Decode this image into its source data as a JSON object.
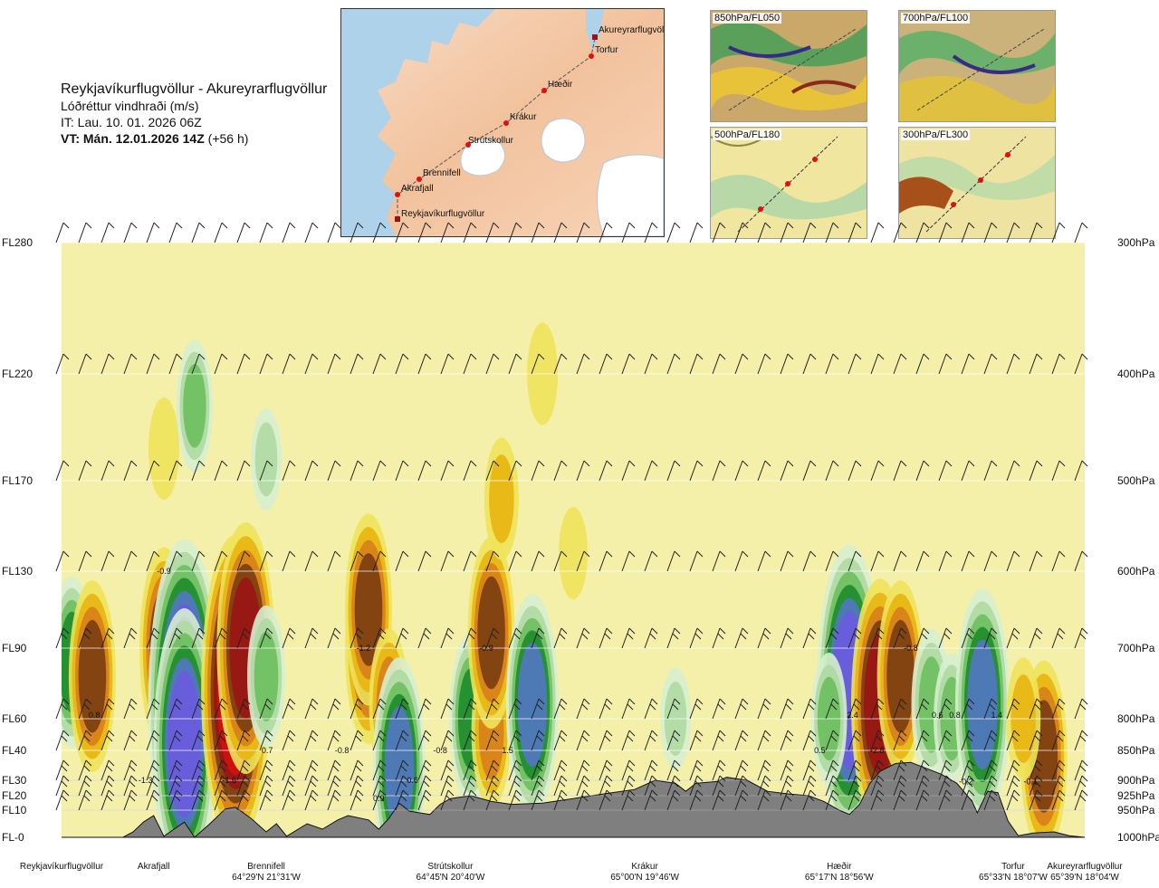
{
  "header": {
    "route": "Reykjavíkurflugvöllur - Akureyrarflugvöllur",
    "parameter": "Lóðréttur vindhraði (m/s)",
    "issue_time": "IT: Lau. 10. 01. 2026 06Z",
    "valid_prefix": "VT: Mán. 12.01.2026 14Z",
    "valid_suffix": " (+56 h)"
  },
  "route_map": {
    "points": [
      {
        "name": "Akureyrarflugvöllur"
      },
      {
        "name": "Torfur"
      },
      {
        "name": "Hæðir"
      },
      {
        "name": "Krákur"
      },
      {
        "name": "Strútskollur"
      },
      {
        "name": "Brennifell"
      },
      {
        "name": "Akrafjall"
      },
      {
        "name": "Reykjavíkurflugvöllur"
      }
    ]
  },
  "mini_maps": [
    {
      "label": "850hPa/FL050"
    },
    {
      "label": "700hPa/FL100"
    },
    {
      "label": "500hPa/FL180"
    },
    {
      "label": "300hPa/FL300"
    }
  ],
  "chart_data": {
    "type": "heatmap",
    "title": "Lóðréttur vindhraði (m/s)",
    "y_axis_left": [
      {
        "label": "FL280",
        "hpa": 300
      },
      {
        "label": "FL220",
        "hpa": 400
      },
      {
        "label": "FL170",
        "hpa": 500
      },
      {
        "label": "FL130",
        "hpa": 600
      },
      {
        "label": "FL90",
        "hpa": 700
      },
      {
        "label": "FL60",
        "hpa": 800
      },
      {
        "label": "FL40",
        "hpa": 850
      },
      {
        "label": "FL30",
        "hpa": 900
      },
      {
        "label": "FL20",
        "hpa": 925
      },
      {
        "label": "FL10",
        "hpa": 950
      },
      {
        "label": "FL-0",
        "hpa": 1000
      }
    ],
    "y_axis_right": [
      "300hPa",
      "400hPa",
      "500hPa",
      "600hPa",
      "700hPa",
      "800hPa",
      "850hPa",
      "900hPa",
      "925hPa",
      "950hPa",
      "1000hPa"
    ],
    "x_range": [
      0,
      1
    ],
    "x_locations": [
      {
        "name": "Reykjavíkurflugvöllur",
        "coord": "",
        "x": 0.0
      },
      {
        "name": "Akrafjall",
        "coord": "",
        "x": 0.09
      },
      {
        "name": "Brennifell",
        "coord": "64°29'N 21°31'W",
        "x": 0.2
      },
      {
        "name": "Strútskollur",
        "coord": "64°45'N 20°40'W",
        "x": 0.38
      },
      {
        "name": "Krákur",
        "coord": "65°00'N 19°46'W",
        "x": 0.57
      },
      {
        "name": "Hæðir",
        "coord": "65°17'N 18°56'W",
        "x": 0.76
      },
      {
        "name": "Torfur",
        "coord": "65°33'N 18°07'W",
        "x": 0.93
      },
      {
        "name": "Akureyrarflugvöllur",
        "coord": "65°39'N 18°04'W",
        "x": 1.0
      }
    ],
    "colorscale": [
      {
        "value": -2.5,
        "color": "#2b0f8f"
      },
      {
        "value": -2.0,
        "color": "#6b5be0"
      },
      {
        "value": -1.5,
        "color": "#5277c4"
      },
      {
        "value": -1.0,
        "color": "#1e8c2a"
      },
      {
        "value": -0.6,
        "color": "#6cbf5e"
      },
      {
        "value": -0.3,
        "color": "#aed9a2"
      },
      {
        "value": -0.1,
        "color": "#d7eecf"
      },
      {
        "value": 0.0,
        "color": "#f5f0a9"
      },
      {
        "value": 0.2,
        "color": "#f0e35a"
      },
      {
        "value": 0.5,
        "color": "#e8b510"
      },
      {
        "value": 0.8,
        "color": "#d77f1a"
      },
      {
        "value": 1.2,
        "color": "#7a3d12"
      },
      {
        "value": 1.8,
        "color": "#9a1414"
      },
      {
        "value": 2.4,
        "color": "#d61010"
      }
    ],
    "field_features": [
      {
        "x": 0.01,
        "hpa": 720,
        "value": -1.0
      },
      {
        "x": 0.03,
        "hpa": 740,
        "value": 1.2
      },
      {
        "x": 0.1,
        "hpa": 700,
        "value": 1.3
      },
      {
        "x": 0.12,
        "hpa": 780,
        "value": -2.6
      },
      {
        "x": 0.12,
        "hpa": 840,
        "value": -2.0
      },
      {
        "x": 0.17,
        "hpa": 760,
        "value": 2.4
      },
      {
        "x": 0.18,
        "hpa": 700,
        "value": 1.8
      },
      {
        "x": 0.2,
        "hpa": 740,
        "value": -0.7
      },
      {
        "x": 0.3,
        "hpa": 700,
        "value": 1.2
      },
      {
        "x": 0.3,
        "hpa": 650,
        "value": 1.2
      },
      {
        "x": 0.32,
        "hpa": 780,
        "value": 0.8
      },
      {
        "x": 0.33,
        "hpa": 880,
        "value": -1.5
      },
      {
        "x": 0.4,
        "hpa": 800,
        "value": -1.0
      },
      {
        "x": 0.42,
        "hpa": 820,
        "value": 0.8
      },
      {
        "x": 0.42,
        "hpa": 680,
        "value": 1.2
      },
      {
        "x": 0.43,
        "hpa": 520,
        "value": 0.5
      },
      {
        "x": 0.46,
        "hpa": 780,
        "value": -1.5
      },
      {
        "x": 0.5,
        "hpa": 580,
        "value": 0.2
      },
      {
        "x": 0.47,
        "hpa": 400,
        "value": 0.3
      },
      {
        "x": 0.6,
        "hpa": 800,
        "value": -0.3
      },
      {
        "x": 0.77,
        "hpa": 760,
        "value": -2.2
      },
      {
        "x": 0.75,
        "hpa": 800,
        "value": -0.6
      },
      {
        "x": 0.8,
        "hpa": 780,
        "value": 1.8
      },
      {
        "x": 0.82,
        "hpa": 740,
        "value": 1.2
      },
      {
        "x": 0.85,
        "hpa": 780,
        "value": -0.8
      },
      {
        "x": 0.87,
        "hpa": 800,
        "value": -0.6
      },
      {
        "x": 0.9,
        "hpa": 780,
        "value": -1.6
      },
      {
        "x": 0.96,
        "hpa": 860,
        "value": 1.2
      },
      {
        "x": 0.94,
        "hpa": 800,
        "value": 0.5
      },
      {
        "x": 0.2,
        "hpa": 480,
        "value": -0.3
      },
      {
        "x": 0.1,
        "hpa": 470,
        "value": 0.3
      },
      {
        "x": 0.13,
        "hpa": 430,
        "value": -0.6
      }
    ],
    "value_labels": [
      {
        "text": "-0.9",
        "x": 0.1,
        "hpa": 600
      },
      {
        "text": "-1.2",
        "x": 0.295,
        "hpa": 700
      },
      {
        "text": "-0.9",
        "x": 0.415,
        "hpa": 700
      },
      {
        "text": "-0.8",
        "x": 0.83,
        "hpa": 700
      },
      {
        "text": "0.8",
        "x": 0.032,
        "hpa": 795
      },
      {
        "text": "2.4",
        "x": 0.773,
        "hpa": 795
      },
      {
        "text": "0.6",
        "x": 0.856,
        "hpa": 795
      },
      {
        "text": "0.8",
        "x": 0.873,
        "hpa": 795
      },
      {
        "text": "1.4",
        "x": 0.914,
        "hpa": 795
      },
      {
        "text": "0.7",
        "x": 0.201,
        "hpa": 850
      },
      {
        "text": "-0.8",
        "x": 0.274,
        "hpa": 850
      },
      {
        "text": "-0.8",
        "x": 0.37,
        "hpa": 850
      },
      {
        "text": "1.5",
        "x": 0.436,
        "hpa": 850
      },
      {
        "text": "0.5",
        "x": 0.741,
        "hpa": 850
      },
      {
        "text": "-2.8",
        "x": 0.797,
        "hpa": 850
      },
      {
        "text": "-1.3",
        "x": 0.082,
        "hpa": 900
      },
      {
        "text": "-1.6",
        "x": 0.164,
        "hpa": 900
      },
      {
        "text": "0.6",
        "x": 0.343,
        "hpa": 900
      },
      {
        "text": "-0.2",
        "x": 0.884,
        "hpa": 902
      },
      {
        "text": "-0.1",
        "x": 0.947,
        "hpa": 902
      },
      {
        "text": "0.9",
        "x": 0.31,
        "hpa": 930
      }
    ],
    "terrain_hpa": [
      [
        0.0,
        1000
      ],
      [
        0.06,
        1000
      ],
      [
        0.07,
        990
      ],
      [
        0.08,
        972
      ],
      [
        0.09,
        960
      ],
      [
        0.1,
        998
      ],
      [
        0.11,
        985
      ],
      [
        0.12,
        972
      ],
      [
        0.13,
        1000
      ],
      [
        0.145,
        975
      ],
      [
        0.16,
        948
      ],
      [
        0.17,
        945
      ],
      [
        0.185,
        965
      ],
      [
        0.2,
        990
      ],
      [
        0.21,
        975
      ],
      [
        0.22,
        998
      ],
      [
        0.24,
        975
      ],
      [
        0.255,
        985
      ],
      [
        0.27,
        968
      ],
      [
        0.28,
        960
      ],
      [
        0.3,
        968
      ],
      [
        0.31,
        985
      ],
      [
        0.32,
        965
      ],
      [
        0.33,
        938
      ],
      [
        0.34,
        952
      ],
      [
        0.36,
        958
      ],
      [
        0.37,
        940
      ],
      [
        0.38,
        930
      ],
      [
        0.4,
        925
      ],
      [
        0.42,
        935
      ],
      [
        0.44,
        940
      ],
      [
        0.47,
        938
      ],
      [
        0.5,
        930
      ],
      [
        0.53,
        922
      ],
      [
        0.56,
        915
      ],
      [
        0.58,
        900
      ],
      [
        0.6,
        905
      ],
      [
        0.61,
        918
      ],
      [
        0.62,
        905
      ],
      [
        0.64,
        902
      ],
      [
        0.65,
        895
      ],
      [
        0.67,
        900
      ],
      [
        0.69,
        918
      ],
      [
        0.71,
        922
      ],
      [
        0.73,
        925
      ],
      [
        0.745,
        935
      ],
      [
        0.76,
        950
      ],
      [
        0.77,
        958
      ],
      [
        0.78,
        940
      ],
      [
        0.79,
        905
      ],
      [
        0.8,
        885
      ],
      [
        0.815,
        872
      ],
      [
        0.83,
        870
      ],
      [
        0.845,
        880
      ],
      [
        0.86,
        890
      ],
      [
        0.875,
        905
      ],
      [
        0.89,
        935
      ],
      [
        0.895,
        955
      ],
      [
        0.905,
        918
      ],
      [
        0.915,
        920
      ],
      [
        0.925,
        970
      ],
      [
        0.935,
        997
      ],
      [
        0.95,
        992
      ],
      [
        0.97,
        990
      ],
      [
        0.985,
        997
      ],
      [
        1.0,
        1000
      ]
    ],
    "wind_levels_hpa": [
      300,
      400,
      500,
      600,
      700,
      800,
      850,
      900,
      925,
      950
    ],
    "grid": true
  }
}
